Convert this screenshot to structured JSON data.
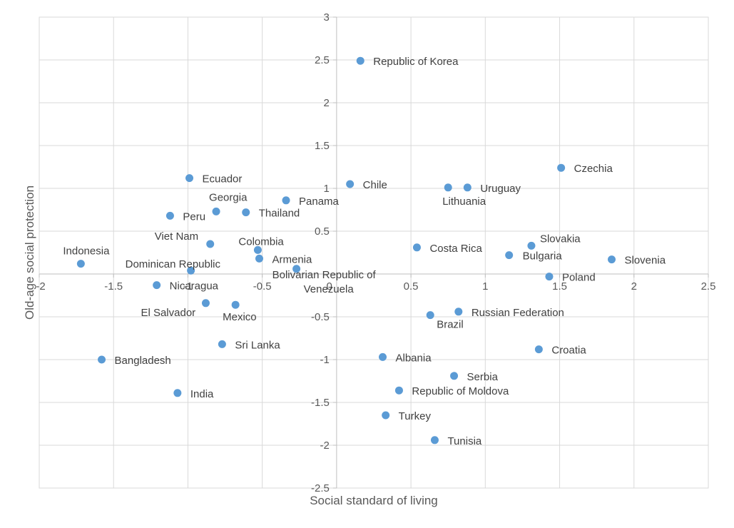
{
  "chart_data": {
    "type": "scatter",
    "xlabel": "Social standard of living",
    "ylabel": "Old-age social protection",
    "xlim": [
      -2,
      2.5
    ],
    "ylim": [
      -2.5,
      3
    ],
    "x_ticks": [
      -2,
      -1.5,
      -1,
      -0.5,
      0,
      0.5,
      1,
      1.5,
      2,
      2.5
    ],
    "x_tick_labels": [
      "-2",
      "-1.5",
      "-1",
      "-0.5",
      "0",
      "0.5",
      "1",
      "1.5",
      "2",
      "2.5"
    ],
    "y_ticks": [
      -2.5,
      -2,
      -1.5,
      -1,
      -0.5,
      0,
      0.5,
      1,
      1.5,
      2,
      2.5,
      3
    ],
    "y_tick_labels": [
      "-2.5",
      "-2",
      "-1.5",
      "-1",
      "-0.5",
      "0",
      "0.5",
      "1",
      "1.5",
      "2",
      "2.5",
      "3"
    ],
    "grid": true,
    "legend": "none",
    "point_color": "#5B9BD5",
    "points": [
      {
        "label": "Republic of Korea",
        "x": 0.16,
        "y": 2.49
      },
      {
        "label": "Czechia",
        "x": 1.51,
        "y": 1.24
      },
      {
        "label": "Ecuador",
        "x": -0.99,
        "y": 1.12
      },
      {
        "label": "Chile",
        "x": 0.09,
        "y": 1.05
      },
      {
        "label": "Lithuania",
        "x": 0.75,
        "y": 1.01
      },
      {
        "label": "Uruguay",
        "x": 0.88,
        "y": 1.01
      },
      {
        "label": "Panama",
        "x": -0.34,
        "y": 0.86
      },
      {
        "label": "Georgia",
        "x": -0.81,
        "y": 0.73
      },
      {
        "label": "Thailand",
        "x": -0.61,
        "y": 0.72
      },
      {
        "label": "Peru",
        "x": -1.12,
        "y": 0.68
      },
      {
        "label": "Viet Nam",
        "x": -0.85,
        "y": 0.35
      },
      {
        "label": "Slovakia",
        "x": 1.31,
        "y": 0.33
      },
      {
        "label": "Costa Rica",
        "x": 0.54,
        "y": 0.31
      },
      {
        "label": "Colombia",
        "x": -0.53,
        "y": 0.28
      },
      {
        "label": "Bulgaria",
        "x": 1.16,
        "y": 0.22
      },
      {
        "label": "Armenia",
        "x": -0.52,
        "y": 0.18
      },
      {
        "label": "Slovenia",
        "x": 1.85,
        "y": 0.17
      },
      {
        "label": "Indonesia",
        "x": -1.72,
        "y": 0.12
      },
      {
        "label": "Bolivarian Republic of Venezuela",
        "x": -0.27,
        "y": 0.06
      },
      {
        "label": "Dominican Republic",
        "x": -0.98,
        "y": 0.04
      },
      {
        "label": "Poland",
        "x": 1.43,
        "y": -0.03
      },
      {
        "label": "Nicaragua",
        "x": -1.21,
        "y": -0.13
      },
      {
        "label": "El Salvador",
        "x": -0.88,
        "y": -0.34
      },
      {
        "label": "Mexico",
        "x": -0.68,
        "y": -0.36
      },
      {
        "label": "Russian Federation",
        "x": 0.82,
        "y": -0.44
      },
      {
        "label": "Brazil",
        "x": 0.63,
        "y": -0.48
      },
      {
        "label": "Sri Lanka",
        "x": -0.77,
        "y": -0.82
      },
      {
        "label": "Croatia",
        "x": 1.36,
        "y": -0.88
      },
      {
        "label": "Albania",
        "x": 0.31,
        "y": -0.97
      },
      {
        "label": "Bangladesh",
        "x": -1.58,
        "y": -1.0
      },
      {
        "label": "Serbia",
        "x": 0.79,
        "y": -1.19
      },
      {
        "label": "Republic of Moldova",
        "x": 0.42,
        "y": -1.36
      },
      {
        "label": "India",
        "x": -1.07,
        "y": -1.39
      },
      {
        "label": "Turkey",
        "x": 0.33,
        "y": -1.65
      },
      {
        "label": "Tunisia",
        "x": 0.66,
        "y": -1.94
      }
    ]
  }
}
